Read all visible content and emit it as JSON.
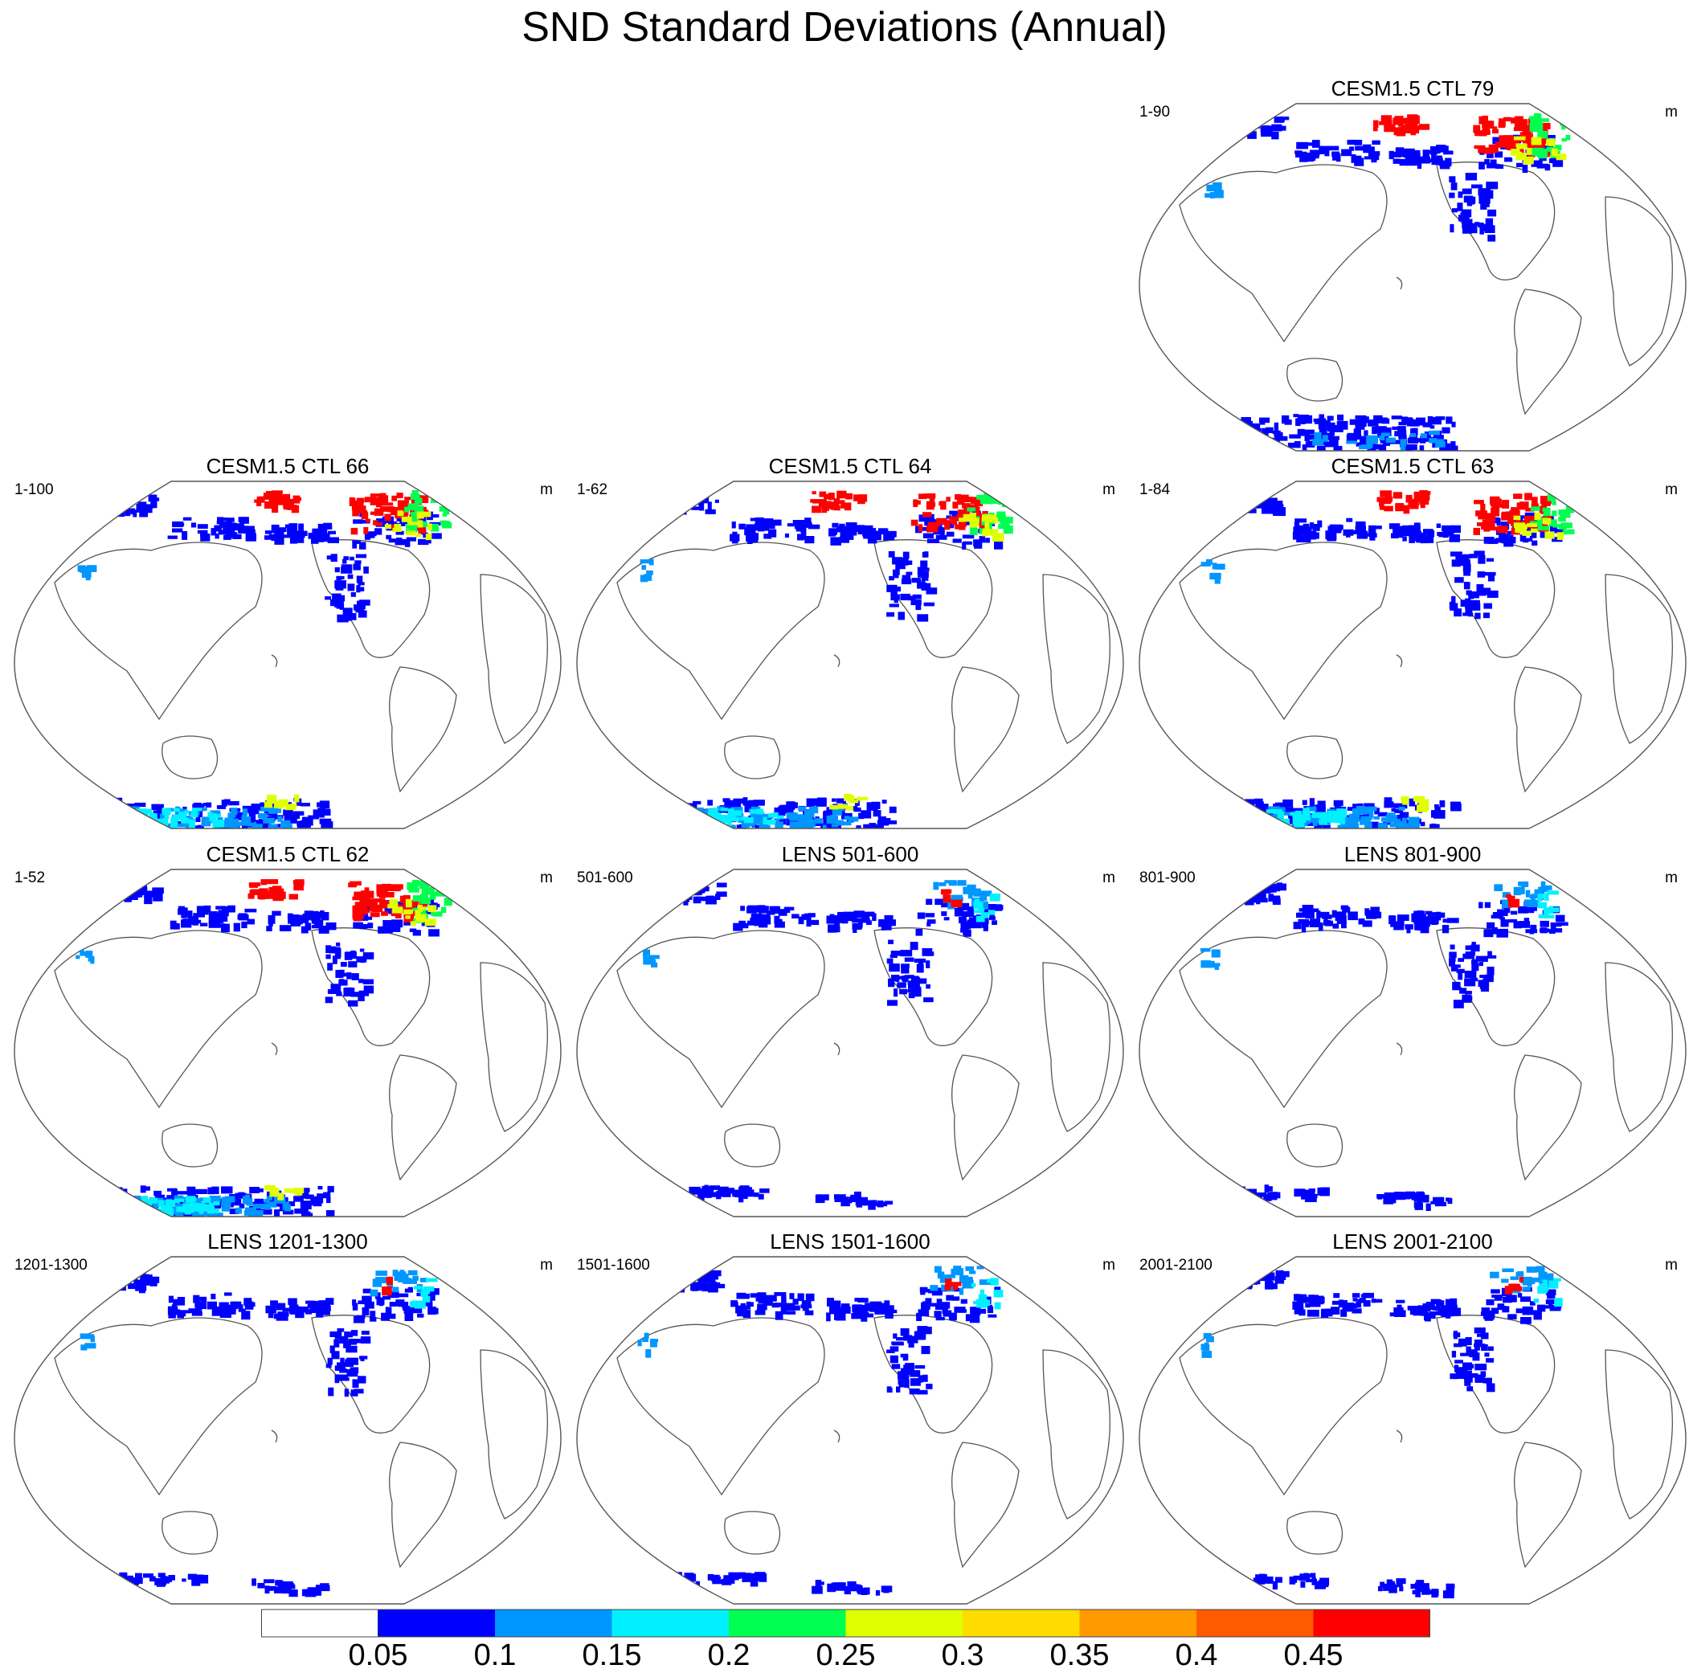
{
  "title": "SND Standard Deviations (Annual)",
  "panels": [
    {
      "id": "ctl79",
      "title": "CESM1.5 CTL 79",
      "left_label": "1-90",
      "right_label": "m",
      "row": 0,
      "col": 2,
      "intensity": "high",
      "antarctic": "blue"
    },
    {
      "id": "ctl66",
      "title": "CESM1.5 CTL 66",
      "left_label": "1-100",
      "right_label": "m",
      "row": 1,
      "col": 0,
      "intensity": "high",
      "antarctic": "cyan"
    },
    {
      "id": "ctl64",
      "title": "CESM1.5 CTL 64",
      "left_label": "1-62",
      "right_label": "m",
      "row": 1,
      "col": 1,
      "intensity": "high",
      "antarctic": "cyan"
    },
    {
      "id": "ctl63",
      "title": "CESM1.5 CTL 63",
      "left_label": "1-84",
      "right_label": "m",
      "row": 1,
      "col": 2,
      "intensity": "high",
      "antarctic": "cyan"
    },
    {
      "id": "ctl62",
      "title": "CESM1.5 CTL 62",
      "left_label": "1-52",
      "right_label": "m",
      "row": 2,
      "col": 0,
      "intensity": "high",
      "antarctic": "cyan"
    },
    {
      "id": "lens501",
      "title": "LENS 501-600",
      "left_label": "501-600",
      "right_label": "m",
      "row": 2,
      "col": 1,
      "intensity": "low",
      "antarctic": "edge"
    },
    {
      "id": "lens801",
      "title": "LENS 801-900",
      "left_label": "801-900",
      "right_label": "m",
      "row": 2,
      "col": 2,
      "intensity": "low",
      "antarctic": "edge"
    },
    {
      "id": "lens1201",
      "title": "LENS 1201-1300",
      "left_label": "1201-1300",
      "right_label": "m",
      "row": 3,
      "col": 0,
      "intensity": "low",
      "antarctic": "edge"
    },
    {
      "id": "lens1501",
      "title": "LENS 1501-1600",
      "left_label": "1501-1600",
      "right_label": "m",
      "row": 3,
      "col": 1,
      "intensity": "low",
      "antarctic": "edge"
    },
    {
      "id": "lens2001",
      "title": "LENS 2001-2100",
      "left_label": "2001-2100",
      "right_label": "m",
      "row": 3,
      "col": 2,
      "intensity": "low",
      "antarctic": "edge"
    }
  ],
  "colorbar": {
    "labels": [
      "0.05",
      "0.1",
      "0.15",
      "0.2",
      "0.25",
      "0.3",
      "0.35",
      "0.4",
      "0.45"
    ],
    "colors": [
      "#ffffff",
      "#0000ff",
      "#0096ff",
      "#00f0ff",
      "#00ff50",
      "#e0ff00",
      "#ffdc00",
      "#ff9a00",
      "#ff5a00",
      "#ff0000"
    ]
  }
}
